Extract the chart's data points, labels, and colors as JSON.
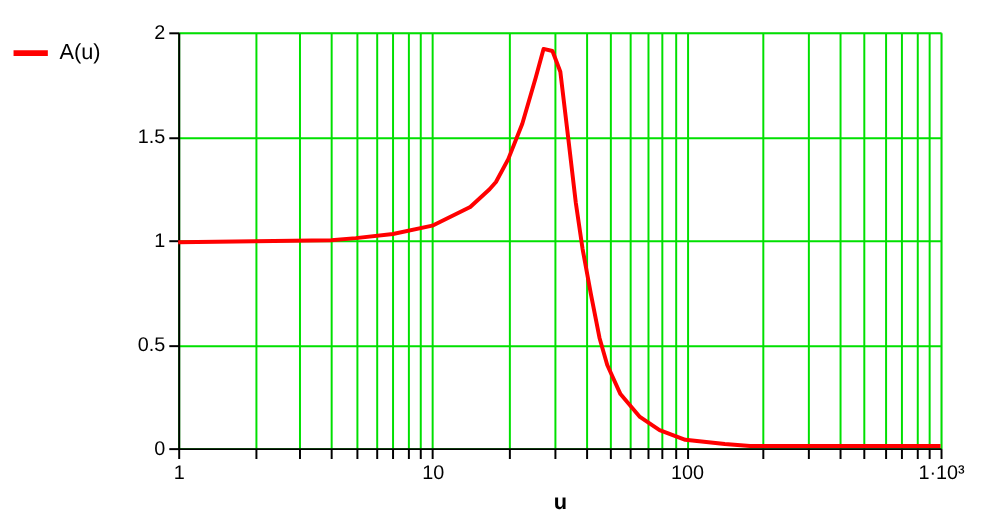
{
  "chart_data": {
    "type": "line",
    "xlabel": "u",
    "log": "x",
    "grid": true,
    "legend": "left",
    "line_style": "solid",
    "marker": "none",
    "xlim": [
      1,
      1000
    ],
    "ylim": [
      0,
      2
    ],
    "xticks": [
      1,
      {
        "value": 2,
        "label": null
      },
      {
        "value": 3,
        "label": null
      },
      {
        "value": 4,
        "label": null
      },
      {
        "value": 5,
        "label": null
      },
      {
        "value": 6,
        "label": null
      },
      {
        "value": 7,
        "label": null
      },
      {
        "value": 8,
        "label": null
      },
      {
        "value": 9,
        "label": null
      },
      10,
      {
        "value": 20,
        "label": null
      },
      {
        "value": 30,
        "label": null
      },
      {
        "value": 40,
        "label": null
      },
      {
        "value": 50,
        "label": null
      },
      {
        "value": 60,
        "label": null
      },
      {
        "value": 70,
        "label": null
      },
      {
        "value": 80,
        "label": null
      },
      {
        "value": 90,
        "label": null
      },
      100,
      {
        "value": 200,
        "label": null
      },
      {
        "value": 300,
        "label": null
      },
      {
        "value": 400,
        "label": null
      },
      {
        "value": 500,
        "label": null
      },
      {
        "value": 600,
        "label": null
      },
      {
        "value": 700,
        "label": null
      },
      {
        "value": 800,
        "label": null
      },
      {
        "value": 900,
        "label": null
      },
      {
        "value": 1000,
        "label": "1·10³"
      }
    ],
    "yticks": [
      0,
      0.5,
      1,
      1.5,
      2
    ],
    "series": [
      {
        "name": "A(u)",
        "color": "#ff0000",
        "x": [
          1,
          2,
          4,
          5,
          7,
          10,
          14.1,
          16.8,
          17.8,
          19.9,
          22.6,
          25.5,
          27.4,
          29.7,
          31.9,
          34.2,
          36.7,
          39,
          42.1,
          45.5,
          48.8,
          55,
          65.6,
          78.4,
          99,
          141.6,
          178,
          1000
        ],
        "values": [
          0.99,
          0.995,
          1.0,
          1.01,
          1.03,
          1.07,
          1.16,
          1.245,
          1.28,
          1.39,
          1.56,
          1.78,
          1.92,
          1.91,
          1.81,
          1.5,
          1.18,
          0.96,
          0.74,
          0.53,
          0.4,
          0.26,
          0.15,
          0.087,
          0.04,
          0.02,
          0.01,
          0.01
        ]
      }
    ]
  }
}
